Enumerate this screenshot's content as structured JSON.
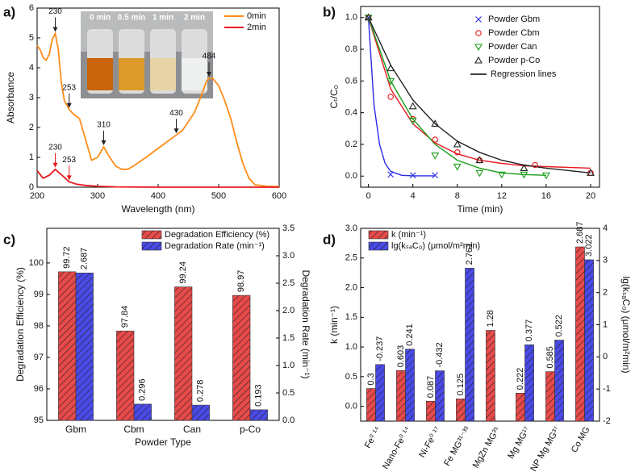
{
  "chart_data": [
    {
      "type": "line",
      "panel_label": "a)",
      "xlabel": "Wavelength (nm)",
      "ylabel": "Absorbance",
      "xlim": [
        200,
        600
      ],
      "ylim": [
        0,
        6
      ],
      "xticks": [
        200,
        300,
        400,
        500,
        600
      ],
      "yticks": [
        0,
        1,
        2,
        3,
        4,
        5,
        6
      ],
      "legend": "upper right",
      "inset_labels": [
        "0 min",
        "0.5 min",
        "1 min",
        "2 min"
      ],
      "series": [
        {
          "name": "0min",
          "color": "#ff8c1a",
          "x": [
            200,
            205,
            210,
            215,
            220,
            225,
            230,
            235,
            240,
            245,
            253,
            260,
            270,
            280,
            290,
            300,
            310,
            320,
            330,
            340,
            350,
            360,
            380,
            400,
            420,
            430,
            440,
            460,
            470,
            480,
            484,
            490,
            500,
            510,
            520,
            530,
            540,
            550,
            560,
            580,
            600
          ],
          "values": [
            4.75,
            4.6,
            4.35,
            4.25,
            4.45,
            4.95,
            5.15,
            4.6,
            3.5,
            2.9,
            2.6,
            2.45,
            2.3,
            1.6,
            0.9,
            1.0,
            1.35,
            1.0,
            0.7,
            0.6,
            0.6,
            0.72,
            1.0,
            1.3,
            1.6,
            1.75,
            1.9,
            2.5,
            3.0,
            3.55,
            3.65,
            3.65,
            3.4,
            2.9,
            2.3,
            1.5,
            0.8,
            0.3,
            0.08,
            0.03,
            0.02
          ],
          "annotations": [
            {
              "text": "230",
              "x": 230,
              "y": 5.15
            },
            {
              "text": "253",
              "x": 253,
              "y": 2.6
            },
            {
              "text": "310",
              "x": 310,
              "y": 1.35
            },
            {
              "text": "430",
              "x": 430,
              "y": 1.75
            },
            {
              "text": "484",
              "x": 484,
              "y": 3.65
            }
          ]
        },
        {
          "name": "2min",
          "color": "#e8191f",
          "x": [
            200,
            210,
            220,
            230,
            240,
            253,
            265,
            280,
            300,
            330,
            400,
            500,
            600
          ],
          "values": [
            0.55,
            0.3,
            0.4,
            0.6,
            0.42,
            0.18,
            0.1,
            0.06,
            0.03,
            0.01,
            0,
            0,
            0
          ],
          "annotations": [
            {
              "text": "230",
              "x": 230,
              "y": 0.6
            },
            {
              "text": "253",
              "x": 253,
              "y": 0.18
            }
          ]
        }
      ]
    },
    {
      "type": "scatter",
      "panel_label": "b)",
      "xlabel": "Time (min)",
      "ylabel": "Cₜ/C₀",
      "xlim": [
        -0.7,
        20.8
      ],
      "ylim": [
        -0.07,
        1.07
      ],
      "xticks": [
        0,
        4,
        8,
        12,
        16,
        20
      ],
      "yticks": [
        {
          "value": 0,
          "label": "0.0"
        },
        0.2,
        0.4,
        0.6,
        0.8,
        {
          "value": 1,
          "label": "1.0"
        }
      ],
      "fit_label": "Regression lines",
      "fit_color": "#000000",
      "series": [
        {
          "name": "Powder Gbm",
          "color": "#2a2ae8",
          "marker": "x",
          "x": [
            0,
            2,
            4,
            6
          ],
          "values": [
            1,
            0.01,
            0.005,
            0.005
          ],
          "fit": {
            "x": [
              0,
              0.5,
              1,
              1.5,
              2,
              3,
              4,
              6
            ],
            "values": [
              1,
              0.45,
              0.2,
              0.08,
              0.03,
              0.005,
              0.002,
              0.002
            ]
          }
        },
        {
          "name": "Powder Cbm",
          "color": "#e8191f",
          "marker": "o",
          "x": [
            0,
            2,
            4,
            6,
            8,
            10,
            15,
            20
          ],
          "values": [
            1,
            0.5,
            0.36,
            0.23,
            0.15,
            0.1,
            0.07,
            0.02
          ],
          "fit": {
            "x": [
              0,
              2,
              4,
              6,
              8,
              10,
              12,
              14,
              16,
              20
            ],
            "values": [
              1,
              0.55,
              0.33,
              0.21,
              0.14,
              0.1,
              0.08,
              0.065,
              0.06,
              0.05
            ]
          }
        },
        {
          "name": "Powder Can",
          "color": "#1a9e1a",
          "marker": "v",
          "x": [
            0,
            2,
            4,
            6,
            8,
            10,
            12,
            14,
            16
          ],
          "values": [
            1,
            0.6,
            0.35,
            0.13,
            0.06,
            0.02,
            0.01,
            0.01,
            0.005
          ],
          "fit": {
            "x": [
              0,
              2,
              4,
              6,
              8,
              10,
              12,
              14,
              16
            ],
            "values": [
              1,
              0.6,
              0.36,
              0.2,
              0.1,
              0.05,
              0.02,
              0.01,
              0.005
            ]
          }
        },
        {
          "name": "Powder p-Co",
          "color": "#222222",
          "marker": "^",
          "x": [
            0,
            2,
            4,
            6,
            8,
            10,
            14,
            20
          ],
          "values": [
            1,
            0.68,
            0.44,
            0.33,
            0.2,
            0.1,
            0.05,
            0.02
          ],
          "fit": {
            "x": [
              0,
              2,
              4,
              6,
              8,
              10,
              12,
              14,
              16,
              20
            ],
            "values": [
              1,
              0.7,
              0.48,
              0.33,
              0.22,
              0.15,
              0.1,
              0.07,
              0.05,
              0.02
            ]
          }
        }
      ]
    },
    {
      "type": "bar",
      "panel_label": "c)",
      "xlabel": "Powder Type",
      "ylabel": "Degradation Efficiency (%)",
      "y2label": "Degradation Rate (min⁻¹)",
      "categories": [
        "Gbm",
        "Cbm",
        "Can",
        "p-Co"
      ],
      "legend": "upper right",
      "category_rotate": false,
      "ylim": [
        95,
        101.1
      ],
      "yticks": [
        95,
        96,
        97,
        98,
        99,
        100
      ],
      "y2lim": [
        0,
        3.5
      ],
      "y2ticks": [
        {
          "value": 0,
          "label": "0.0"
        },
        0.5,
        {
          "value": 1,
          "label": "1.0"
        },
        1.5,
        {
          "value": 2,
          "label": "2.0"
        },
        2.5,
        {
          "value": 3,
          "label": "3.0"
        },
        3.5
      ],
      "series": [
        {
          "name": "Degradation Efficiency (%)",
          "color": "#e84a4a",
          "values": [
            99.72,
            97.84,
            99.24,
            98.97
          ]
        },
        {
          "name": "Degradation Rate (min⁻¹)",
          "color": "#4a4ae8",
          "axis": "y2",
          "values": [
            2.687,
            0.296,
            0.278,
            0.193
          ]
        }
      ]
    },
    {
      "type": "bar",
      "panel_label": "d)",
      "ylabel": "k (min⁻¹)",
      "y2label": "lg(kₛₐC₀) (μmol/m²min)",
      "categories": [
        "Fe⁰ ¹⁴",
        "Nano-Fe⁰ ¹⁴",
        "Ni-Fe⁰ ¹⁷",
        "Fe MG³¹⁻³³",
        "MgZn MG³⁵",
        "Mg MG¹⁷",
        "NP Mg MG³⁷",
        "Co MG"
      ],
      "legend": "upper left",
      "category_rotate": true,
      "ylim": [
        -0.25,
        3.0
      ],
      "yticks": [
        {
          "value": 0,
          "label": "0.0"
        },
        0.5,
        {
          "value": 1,
          "label": "1.0"
        },
        1.5,
        {
          "value": 2,
          "label": "2.0"
        },
        2.5,
        {
          "value": 3,
          "label": "3.0"
        }
      ],
      "y2lim": [
        -2,
        4
      ],
      "y2ticks": [
        -2,
        -1,
        0,
        1,
        2,
        3,
        4
      ],
      "series": [
        {
          "name": "k (min⁻¹)",
          "color": "#e84a4a",
          "values": [
            0.3,
            0.603,
            0.087,
            0.125,
            1.28,
            0.222,
            0.585,
            2.687
          ]
        },
        {
          "name": "lg(kₛₐC₀) (μmol/m²min)",
          "color": "#4a4ae8",
          "axis": "y2",
          "values": [
            -0.237,
            0.241,
            -0.432,
            2.761,
            null,
            0.377,
            0.522,
            3.022
          ]
        }
      ]
    }
  ]
}
